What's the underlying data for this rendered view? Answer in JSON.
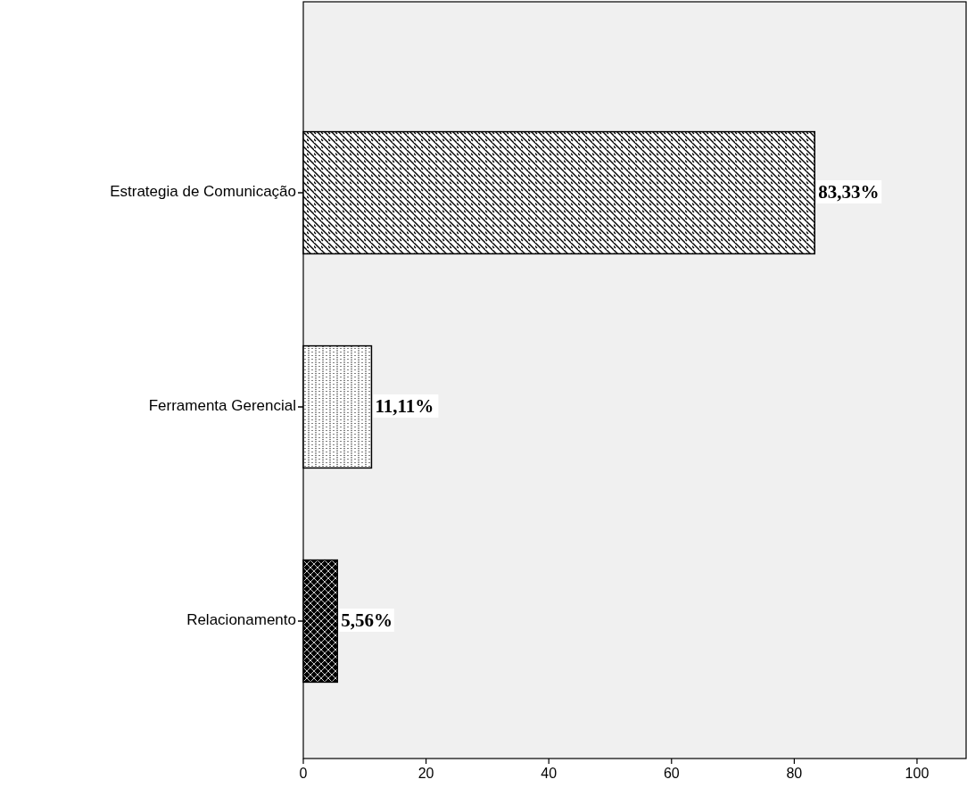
{
  "chart_data": {
    "type": "bar",
    "orientation": "horizontal",
    "categories": [
      "Estrategia de Comunicação",
      "Ferramenta Gerencial",
      "Relacionamento"
    ],
    "values": [
      83.33,
      11.11,
      5.56
    ],
    "value_labels": [
      "83,33%",
      "11,11%",
      "5,56%"
    ],
    "colors": [
      "#000000",
      "#000000",
      "#000000"
    ],
    "xlim": [
      0,
      108
    ],
    "xticks": [
      0,
      20,
      40,
      60,
      80,
      100
    ],
    "grid": false
  }
}
